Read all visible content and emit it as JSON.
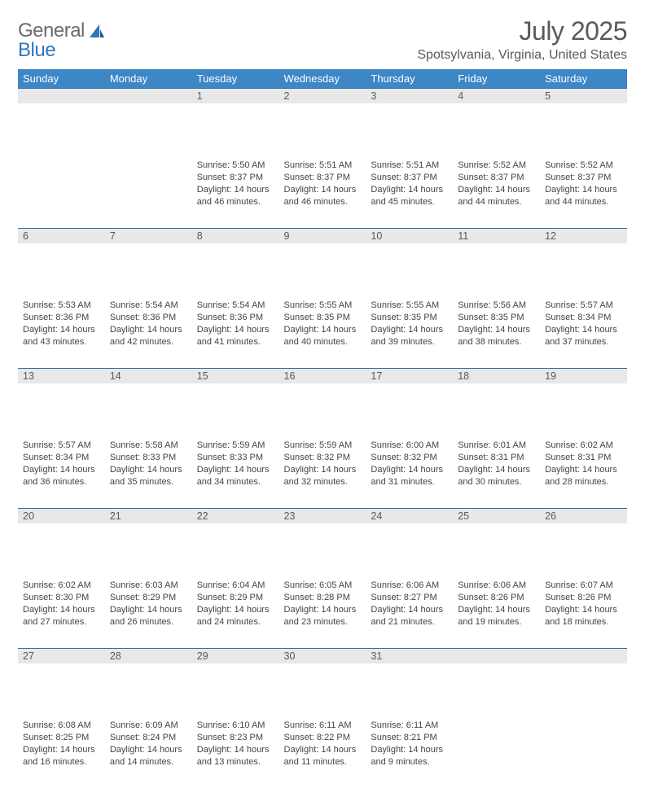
{
  "logo": {
    "word1": "General",
    "word2": "Blue"
  },
  "title": "July 2025",
  "location": "Spotsylvania, Virginia, United States",
  "colors": {
    "header_bg": "#3d87c7",
    "header_text": "#ffffff",
    "daynum_bg": "#e8e8e8",
    "daynum_border": "#2f6ca8",
    "text_muted": "#595959",
    "logo_gray": "#6a6a6a",
    "logo_blue": "#2f76ba"
  },
  "weekdays": [
    "Sunday",
    "Monday",
    "Tuesday",
    "Wednesday",
    "Thursday",
    "Friday",
    "Saturday"
  ],
  "weeks": [
    [
      null,
      null,
      {
        "d": "1",
        "sr": "5:50 AM",
        "ss": "8:37 PM",
        "dl": "14 hours and 46 minutes."
      },
      {
        "d": "2",
        "sr": "5:51 AM",
        "ss": "8:37 PM",
        "dl": "14 hours and 46 minutes."
      },
      {
        "d": "3",
        "sr": "5:51 AM",
        "ss": "8:37 PM",
        "dl": "14 hours and 45 minutes."
      },
      {
        "d": "4",
        "sr": "5:52 AM",
        "ss": "8:37 PM",
        "dl": "14 hours and 44 minutes."
      },
      {
        "d": "5",
        "sr": "5:52 AM",
        "ss": "8:37 PM",
        "dl": "14 hours and 44 minutes."
      }
    ],
    [
      {
        "d": "6",
        "sr": "5:53 AM",
        "ss": "8:36 PM",
        "dl": "14 hours and 43 minutes."
      },
      {
        "d": "7",
        "sr": "5:54 AM",
        "ss": "8:36 PM",
        "dl": "14 hours and 42 minutes."
      },
      {
        "d": "8",
        "sr": "5:54 AM",
        "ss": "8:36 PM",
        "dl": "14 hours and 41 minutes."
      },
      {
        "d": "9",
        "sr": "5:55 AM",
        "ss": "8:35 PM",
        "dl": "14 hours and 40 minutes."
      },
      {
        "d": "10",
        "sr": "5:55 AM",
        "ss": "8:35 PM",
        "dl": "14 hours and 39 minutes."
      },
      {
        "d": "11",
        "sr": "5:56 AM",
        "ss": "8:35 PM",
        "dl": "14 hours and 38 minutes."
      },
      {
        "d": "12",
        "sr": "5:57 AM",
        "ss": "8:34 PM",
        "dl": "14 hours and 37 minutes."
      }
    ],
    [
      {
        "d": "13",
        "sr": "5:57 AM",
        "ss": "8:34 PM",
        "dl": "14 hours and 36 minutes."
      },
      {
        "d": "14",
        "sr": "5:58 AM",
        "ss": "8:33 PM",
        "dl": "14 hours and 35 minutes."
      },
      {
        "d": "15",
        "sr": "5:59 AM",
        "ss": "8:33 PM",
        "dl": "14 hours and 34 minutes."
      },
      {
        "d": "16",
        "sr": "5:59 AM",
        "ss": "8:32 PM",
        "dl": "14 hours and 32 minutes."
      },
      {
        "d": "17",
        "sr": "6:00 AM",
        "ss": "8:32 PM",
        "dl": "14 hours and 31 minutes."
      },
      {
        "d": "18",
        "sr": "6:01 AM",
        "ss": "8:31 PM",
        "dl": "14 hours and 30 minutes."
      },
      {
        "d": "19",
        "sr": "6:02 AM",
        "ss": "8:31 PM",
        "dl": "14 hours and 28 minutes."
      }
    ],
    [
      {
        "d": "20",
        "sr": "6:02 AM",
        "ss": "8:30 PM",
        "dl": "14 hours and 27 minutes."
      },
      {
        "d": "21",
        "sr": "6:03 AM",
        "ss": "8:29 PM",
        "dl": "14 hours and 26 minutes."
      },
      {
        "d": "22",
        "sr": "6:04 AM",
        "ss": "8:29 PM",
        "dl": "14 hours and 24 minutes."
      },
      {
        "d": "23",
        "sr": "6:05 AM",
        "ss": "8:28 PM",
        "dl": "14 hours and 23 minutes."
      },
      {
        "d": "24",
        "sr": "6:06 AM",
        "ss": "8:27 PM",
        "dl": "14 hours and 21 minutes."
      },
      {
        "d": "25",
        "sr": "6:06 AM",
        "ss": "8:26 PM",
        "dl": "14 hours and 19 minutes."
      },
      {
        "d": "26",
        "sr": "6:07 AM",
        "ss": "8:26 PM",
        "dl": "14 hours and 18 minutes."
      }
    ],
    [
      {
        "d": "27",
        "sr": "6:08 AM",
        "ss": "8:25 PM",
        "dl": "14 hours and 16 minutes."
      },
      {
        "d": "28",
        "sr": "6:09 AM",
        "ss": "8:24 PM",
        "dl": "14 hours and 14 minutes."
      },
      {
        "d": "29",
        "sr": "6:10 AM",
        "ss": "8:23 PM",
        "dl": "14 hours and 13 minutes."
      },
      {
        "d": "30",
        "sr": "6:11 AM",
        "ss": "8:22 PM",
        "dl": "14 hours and 11 minutes."
      },
      {
        "d": "31",
        "sr": "6:11 AM",
        "ss": "8:21 PM",
        "dl": "14 hours and 9 minutes."
      },
      null,
      null
    ]
  ],
  "labels": {
    "sunrise": "Sunrise:",
    "sunset": "Sunset:",
    "daylight": "Daylight:"
  }
}
